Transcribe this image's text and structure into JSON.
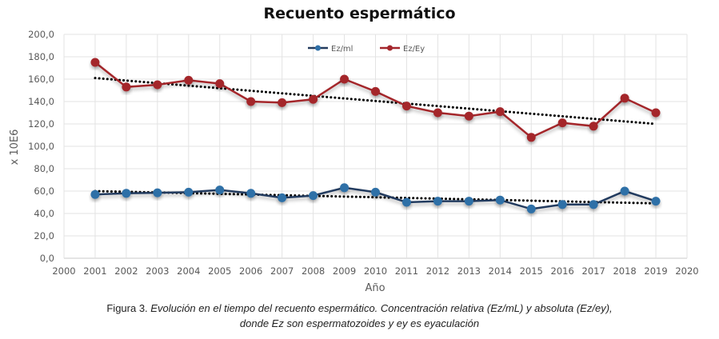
{
  "chart_data": {
    "type": "line",
    "title": "Recuento espermático",
    "xlabel": "Año",
    "ylabel": "x 10E6",
    "xlim": [
      2000,
      2020
    ],
    "ylim": [
      0,
      200
    ],
    "x_ticks": [
      2000,
      2001,
      2002,
      2003,
      2004,
      2005,
      2006,
      2007,
      2008,
      2009,
      2010,
      2011,
      2012,
      2013,
      2014,
      2015,
      2016,
      2017,
      2018,
      2019,
      2020
    ],
    "x_tick_labels": [
      "2000",
      "2001",
      "2002",
      "2003",
      "2004",
      "2005",
      "2006",
      "2007",
      "2008",
      "2009",
      "2010",
      "2011",
      "2012",
      "2013",
      "2014",
      "2015",
      "2016",
      "2017",
      "2018",
      "2019",
      "2020"
    ],
    "y_ticks": [
      0,
      20,
      40,
      60,
      80,
      100,
      120,
      140,
      160,
      180,
      200
    ],
    "y_tick_labels": [
      "0,0",
      "20,0",
      "40,0",
      "60,0",
      "80,0",
      "100,0",
      "120,0",
      "140,0",
      "160,0",
      "180,0",
      "200,0"
    ],
    "grid": true,
    "legend_position": "top-center",
    "x": [
      2001,
      2002,
      2003,
      2004,
      2005,
      2006,
      2007,
      2008,
      2009,
      2010,
      2011,
      2012,
      2013,
      2014,
      2015,
      2016,
      2017,
      2018,
      2019
    ],
    "series": [
      {
        "name": "Ez/ml",
        "color": "#2E6FA7",
        "line_color": "#243B5E",
        "values": [
          57,
          58,
          58.5,
          59,
          61,
          58,
          54,
          56,
          63,
          59,
          50,
          51,
          51,
          52,
          44,
          48,
          48,
          60,
          51
        ],
        "trendline": {
          "type": "linear",
          "start": [
            2001,
            60
          ],
          "end": [
            2019,
            49
          ]
        }
      },
      {
        "name": "Ez/Ey",
        "color": "#A4262C",
        "line_color": "#A4262C",
        "values": [
          175,
          153,
          155,
          159,
          156,
          140,
          139,
          142,
          160,
          149,
          136,
          130,
          127,
          131,
          108,
          121,
          118,
          143,
          130
        ],
        "trendline": {
          "type": "linear",
          "start": [
            2001,
            161
          ],
          "end": [
            2019,
            120
          ]
        }
      }
    ]
  },
  "caption": {
    "lead": "Figura 3.",
    "line1": "Evolución en el tiempo del recuento espermático. Concentración relativa (Ez/mL) y absoluta (Ez/ey),",
    "line2": "donde Ez son espermatozoides y ey es eyaculación"
  }
}
